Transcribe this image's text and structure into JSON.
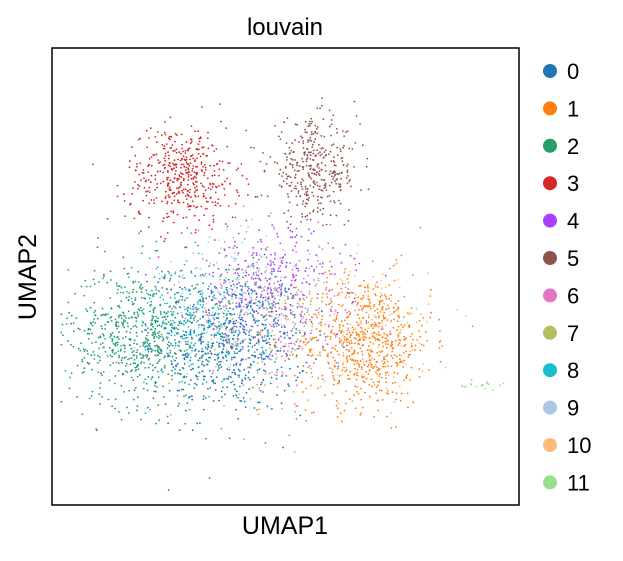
{
  "chart_data": {
    "type": "scatter",
    "title": "louvain",
    "xlabel": "UMAP1",
    "ylabel": "UMAP2",
    "xlim": [
      0,
      10
    ],
    "ylim": [
      0,
      10
    ],
    "ticks_shown": false,
    "grid": false,
    "legend_position": "right",
    "series": [
      {
        "name": "0",
        "color": "#1f77b4",
        "center": [
          3.8,
          3.6
        ],
        "spread": [
          1.4,
          1.3
        ],
        "count": 700
      },
      {
        "name": "1",
        "color": "#ff7f0e",
        "center": [
          6.7,
          3.6
        ],
        "spread": [
          1.2,
          1.2
        ],
        "count": 650
      },
      {
        "name": "2",
        "color": "#279e68",
        "center": [
          1.8,
          3.7
        ],
        "spread": [
          1.2,
          1.3
        ],
        "count": 600
      },
      {
        "name": "3",
        "color": "#d62728",
        "center": [
          2.8,
          7.2
        ],
        "spread": [
          1.0,
          0.9
        ],
        "count": 450
      },
      {
        "name": "4",
        "color": "#aa40fc",
        "center": [
          4.6,
          4.9
        ],
        "spread": [
          1.4,
          1.1
        ],
        "count": 260
      },
      {
        "name": "5",
        "color": "#8c564b",
        "center": [
          5.6,
          7.3
        ],
        "spread": [
          0.8,
          0.9
        ],
        "count": 380
      },
      {
        "name": "6",
        "color": "#e377c2",
        "center": [
          4.9,
          4.2
        ],
        "spread": [
          1.5,
          1.3
        ],
        "count": 240
      },
      {
        "name": "7",
        "color": "#b5bd61",
        "center": [
          4.4,
          3.9
        ],
        "spread": [
          1.3,
          1.3
        ],
        "count": 160
      },
      {
        "name": "8",
        "color": "#17becf",
        "center": [
          3.1,
          4.0
        ],
        "spread": [
          1.3,
          1.2
        ],
        "count": 260
      },
      {
        "name": "9",
        "color": "#aec7e8",
        "center": [
          4.0,
          4.4
        ],
        "spread": [
          1.4,
          1.3
        ],
        "count": 200
      },
      {
        "name": "10",
        "color": "#ffbb78",
        "center": [
          6.9,
          3.9
        ],
        "spread": [
          1.0,
          1.1
        ],
        "count": 160
      },
      {
        "name": "11",
        "color": "#98df8a",
        "center": [
          9.2,
          2.6
        ],
        "spread": [
          0.5,
          0.15
        ],
        "count": 18
      }
    ]
  }
}
